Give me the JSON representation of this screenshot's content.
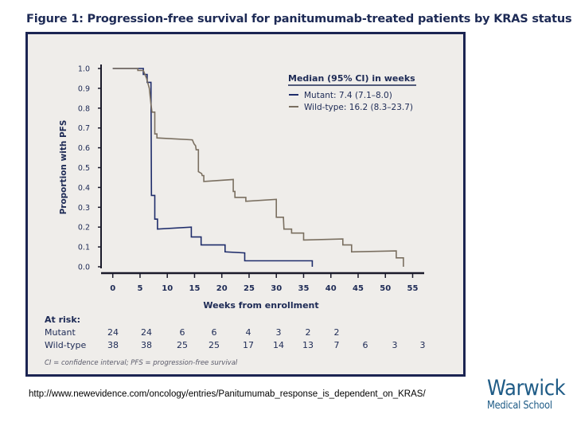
{
  "chart_data": {
    "type": "line",
    "step": true,
    "title": "Figure 1: Progression-free survival for panitumumab-treated patients by KRAS status",
    "xlabel": "Weeks from enrollment",
    "ylabel": "Proportion with PFS",
    "xlim": [
      0,
      55
    ],
    "ylim": [
      0,
      1.0
    ],
    "xticks": [
      "0",
      "5",
      "10",
      "15",
      "20",
      "25",
      "30",
      "35",
      "40",
      "45",
      "50",
      "55"
    ],
    "yticks": [
      "0.0",
      "0.1",
      "0.2",
      "0.3",
      "0.4",
      "0.5",
      "0.6",
      "0.7",
      "0.8",
      "0.9",
      "1.0"
    ],
    "grid": false,
    "legend": {
      "position": "top-right",
      "title": "Median (95% CI) in weeks"
    },
    "series": [
      {
        "name": "Mutant: 7.4 (7.1–8.0)",
        "color": "#1f2d6b",
        "points": [
          [
            0,
            1.0
          ],
          [
            5.6,
            1.0
          ],
          [
            5.6,
            0.97
          ],
          [
            6.3,
            0.97
          ],
          [
            6.3,
            0.93
          ],
          [
            7.0,
            0.93
          ],
          [
            7.1,
            0.36
          ],
          [
            7.7,
            0.36
          ],
          [
            7.7,
            0.24
          ],
          [
            8.2,
            0.24
          ],
          [
            8.2,
            0.19
          ],
          [
            14.4,
            0.2
          ],
          [
            14.4,
            0.15
          ],
          [
            16.2,
            0.15
          ],
          [
            16.2,
            0.11
          ],
          [
            20.6,
            0.11
          ],
          [
            20.6,
            0.075
          ],
          [
            24.2,
            0.07
          ],
          [
            24.2,
            0.03
          ],
          [
            36.6,
            0.03
          ],
          [
            36.6,
            0.0
          ]
        ]
      },
      {
        "name": "Wild-type: 16.2 (8.3–23.7)",
        "color": "#7a6f60",
        "points": [
          [
            0,
            1.0
          ],
          [
            4.6,
            1.0
          ],
          [
            4.6,
            0.99
          ],
          [
            5.6,
            0.99
          ],
          [
            6.2,
            0.95
          ],
          [
            6.7,
            0.9
          ],
          [
            7.0,
            0.82
          ],
          [
            7.2,
            0.78
          ],
          [
            7.7,
            0.78
          ],
          [
            7.7,
            0.67
          ],
          [
            8.1,
            0.67
          ],
          [
            8.1,
            0.65
          ],
          [
            14.6,
            0.64
          ],
          [
            14.9,
            0.62
          ],
          [
            15.2,
            0.61
          ],
          [
            15.3,
            0.59
          ],
          [
            15.7,
            0.59
          ],
          [
            15.7,
            0.48
          ],
          [
            16.3,
            0.47
          ],
          [
            16.4,
            0.46
          ],
          [
            16.7,
            0.46
          ],
          [
            16.7,
            0.43
          ],
          [
            22.1,
            0.44
          ],
          [
            22.1,
            0.38
          ],
          [
            22.4,
            0.38
          ],
          [
            22.4,
            0.35
          ],
          [
            24.4,
            0.35
          ],
          [
            24.4,
            0.33
          ],
          [
            30.0,
            0.34
          ],
          [
            30.0,
            0.25
          ],
          [
            31.3,
            0.25
          ],
          [
            31.4,
            0.19
          ],
          [
            32.8,
            0.19
          ],
          [
            32.8,
            0.17
          ],
          [
            35.0,
            0.17
          ],
          [
            35.0,
            0.135
          ],
          [
            42.2,
            0.14
          ],
          [
            42.2,
            0.11
          ],
          [
            43.8,
            0.11
          ],
          [
            43.8,
            0.075
          ],
          [
            52.0,
            0.08
          ],
          [
            52.0,
            0.045
          ],
          [
            53.3,
            0.045
          ],
          [
            53.3,
            0.0
          ]
        ]
      }
    ],
    "at_risk": {
      "label": "At risk:",
      "rows": [
        {
          "name": "Mutant",
          "values": [
            "24",
            "24",
            "6",
            "6",
            "4",
            "3",
            "2",
            "2"
          ]
        },
        {
          "name": "Wild-type",
          "values": [
            "38",
            "38",
            "25",
            "25",
            "17",
            "14",
            "13",
            "7",
            "6",
            "3",
            "3"
          ]
        }
      ]
    },
    "footnote": "CI = confidence interval;  PFS = progression-free survival"
  },
  "source_url": "http://www.newevidence.com/oncology/entries/Panitumumab_response_is_dependent_on_KRAS/",
  "logo": {
    "line1": "Warwick",
    "line2": "Medical School",
    "color": "#1e5b86"
  }
}
